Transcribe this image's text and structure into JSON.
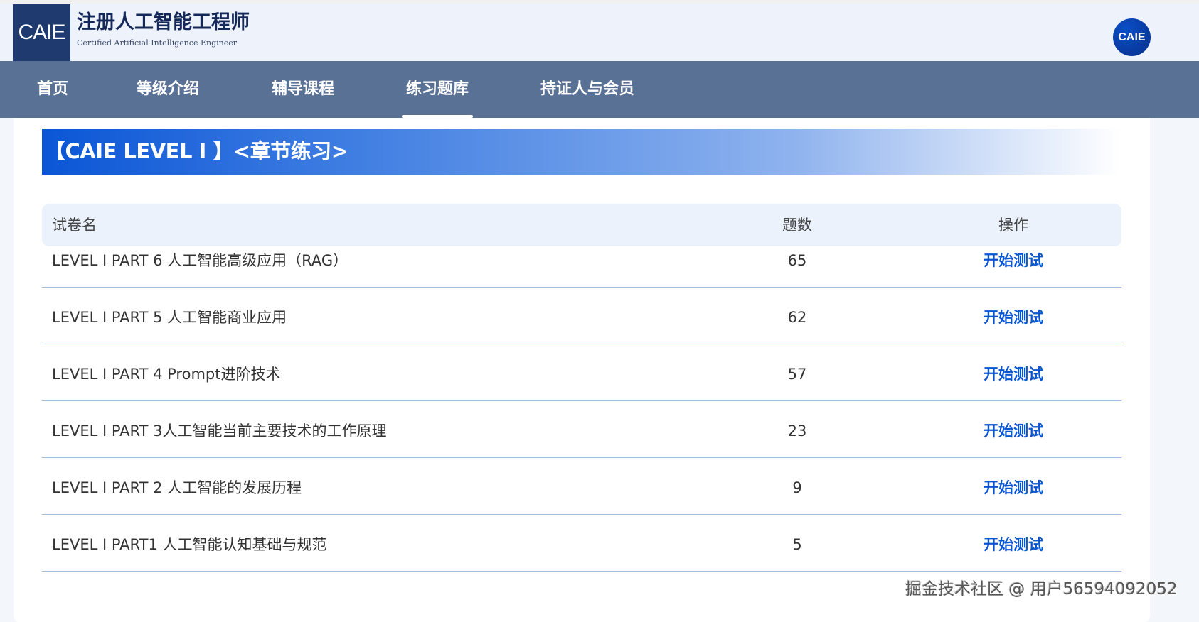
{
  "header": {
    "logo_mark": "CAIE",
    "logo_cn": "注册人工智能工程师",
    "logo_en": "Certified Artificial Intelligence Engineer",
    "avatar_text": "CAIE"
  },
  "nav": {
    "items": [
      {
        "label": "首页"
      },
      {
        "label": "等级介绍"
      },
      {
        "label": "辅导课程"
      },
      {
        "label": "练习题库",
        "active": true
      },
      {
        "label": "持证人与会员"
      }
    ]
  },
  "banner": {
    "title": "【CAIE LEVEL I 】<章节练习>"
  },
  "table": {
    "headers": {
      "name": "试卷名",
      "count": "题数",
      "action": "操作"
    },
    "rows": [
      {
        "name": "LEVEL I PART 6 人工智能高级应用（RAG）",
        "count": "65",
        "action": "开始测试"
      },
      {
        "name": "LEVEL I PART 5 人工智能商业应用",
        "count": "62",
        "action": "开始测试"
      },
      {
        "name": "LEVEL I PART 4 Prompt进阶技术",
        "count": "57",
        "action": "开始测试"
      },
      {
        "name": "LEVEL I PART 3人工智能当前主要技术的工作原理",
        "count": "23",
        "action": "开始测试"
      },
      {
        "name": "LEVEL I PART 2 人工智能的发展历程",
        "count": "9",
        "action": "开始测试"
      },
      {
        "name": "LEVEL I PART1 人工智能认知基础与规范",
        "count": "5",
        "action": "开始测试"
      }
    ]
  },
  "watermark": "掘金技术社区 @ 用户56594092052",
  "colors": {
    "nav_bg": "#5a7196",
    "link": "#0a55d0",
    "logo_bg": "#1e3a6e"
  }
}
